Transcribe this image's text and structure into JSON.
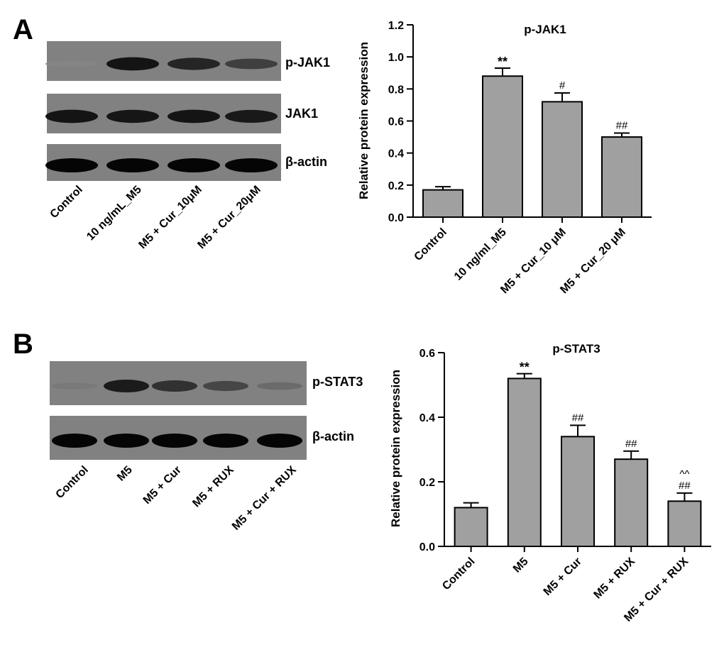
{
  "panels": [
    {
      "letter": "A",
      "blot": {
        "rows": [
          {
            "label": "p-JAK1",
            "intensities": [
              0.12,
              0.9,
              0.78,
              0.6
            ]
          },
          {
            "label": "JAK1",
            "intensities": [
              0.9,
              0.88,
              0.9,
              0.86
            ]
          },
          {
            "label": "β-actin",
            "intensities": [
              1.0,
              1.0,
              1.0,
              1.0
            ]
          }
        ],
        "lanes": [
          "Control",
          "10 ng/mL_M5",
          "M5 + Cur_10μM",
          "M5 + Cur_20μM"
        ]
      }
    },
    {
      "letter": "B",
      "blot": {
        "rows": [
          {
            "label": "p-STAT3",
            "intensities": [
              0.2,
              0.85,
              0.7,
              0.55,
              0.3
            ]
          },
          {
            "label": "β-actin",
            "intensities": [
              1.0,
              1.0,
              1.0,
              1.0,
              1.0
            ]
          }
        ],
        "lanes": [
          "Control",
          "M5",
          "M5 + Cur",
          "M5 + RUX",
          "M5 + Cur + RUX"
        ]
      }
    }
  ],
  "chart_data": [
    {
      "type": "bar",
      "title": "p-JAK1",
      "ylabel": "Relative protein expression",
      "xlabel": "",
      "categories": [
        "Control",
        "10 ng/ml_M5",
        "M5 + Cur_10 μM",
        "M5 + Cur_20 μM"
      ],
      "values": [
        0.17,
        0.88,
        0.72,
        0.5
      ],
      "errors": [
        0.02,
        0.05,
        0.055,
        0.025
      ],
      "significance": [
        "",
        "**",
        "#",
        "##"
      ],
      "ylim": [
        0,
        1.2
      ],
      "yticks": [
        "0.0",
        "0.2",
        "0.4",
        "0.6",
        "0.8",
        "1.0",
        "1.2"
      ],
      "bar_color": "#a0a0a0",
      "grid": false
    },
    {
      "type": "bar",
      "title": "p-STAT3",
      "ylabel": "Relative protein expression",
      "xlabel": "",
      "categories": [
        "Control",
        "M5",
        "M5 + Cur",
        "M5 + RUX",
        "M5 + Cur + RUX"
      ],
      "values": [
        0.12,
        0.52,
        0.34,
        0.27,
        0.14
      ],
      "errors": [
        0.015,
        0.015,
        0.035,
        0.025,
        0.025
      ],
      "significance": [
        "",
        "**",
        "##",
        "##",
        "##"
      ],
      "significance2": [
        "",
        "",
        "",
        "",
        "^^"
      ],
      "ylim": [
        0,
        0.6
      ],
      "yticks": [
        "0.0",
        "0.2",
        "0.4",
        "0.6"
      ],
      "bar_color": "#a0a0a0",
      "grid": false
    }
  ]
}
